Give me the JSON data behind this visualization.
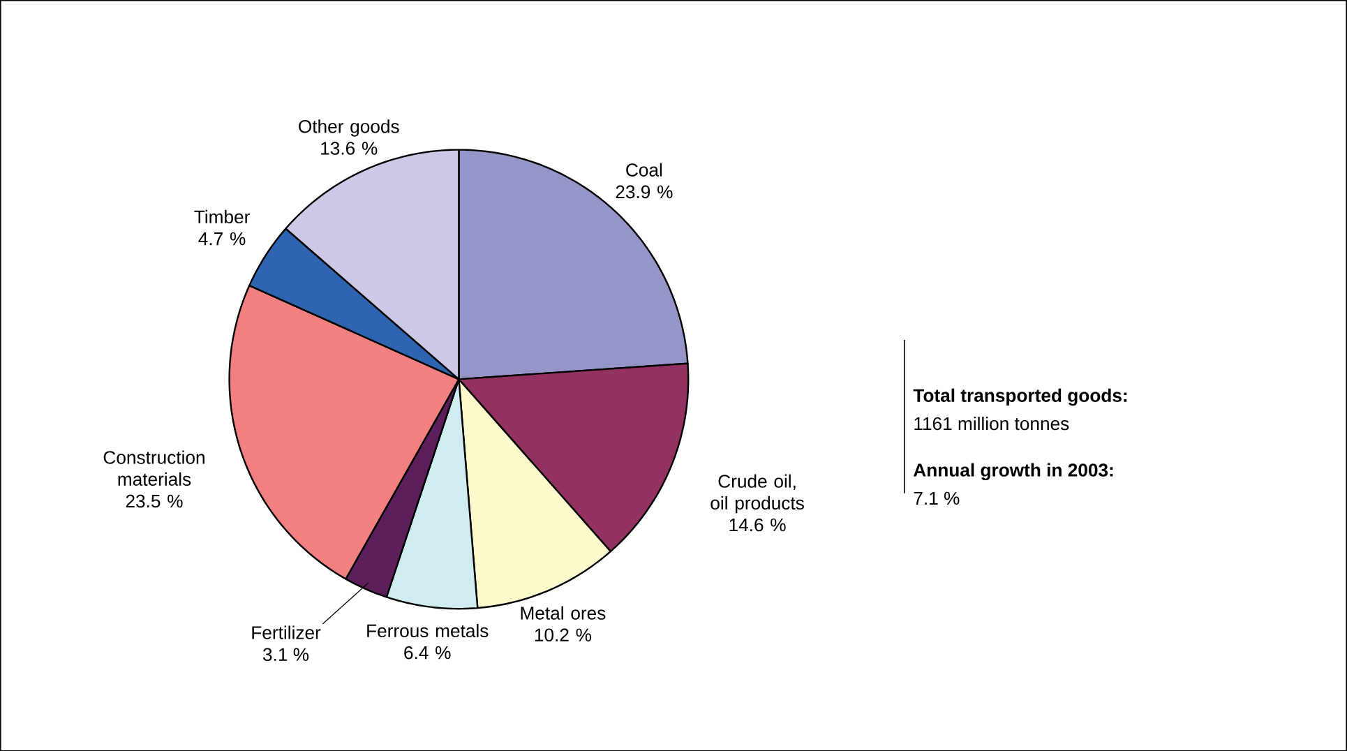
{
  "chart_data": {
    "type": "pie",
    "categories": [
      "Coal",
      "Crude oil, oil products",
      "Metal ores",
      "Ferrous metals",
      "Fertilizer",
      "Construction materials",
      "Timber",
      "Other goods"
    ],
    "values": [
      23.9,
      14.6,
      10.2,
      6.4,
      3.1,
      23.5,
      4.7,
      13.6
    ],
    "value_labels": [
      "23.9 %",
      "14.6 %",
      "10.2 %",
      "6.4 %",
      "3.1 %",
      "23.5 %",
      "4.7 %",
      "13.6 %"
    ],
    "colors": [
      "#9595c8",
      "#933260",
      "#fcfacc",
      "#d0ecf0",
      "#5c1f5c",
      "#f28080",
      "#2e64b0",
      "#ccc9e6"
    ],
    "annotations": [
      "Total transported goods:",
      "1161 million tonnes",
      "Annual growth in 2003:",
      "7.1 %"
    ]
  }
}
